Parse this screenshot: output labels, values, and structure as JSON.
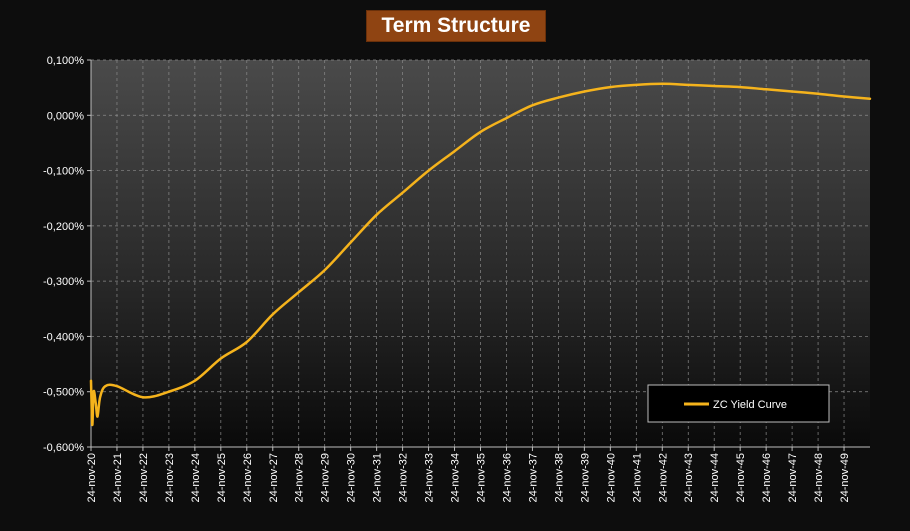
{
  "chart_data": {
    "type": "line",
    "title": "Term Structure",
    "xlabel": "",
    "ylabel": "",
    "ylim": [
      -0.6,
      0.1
    ],
    "yticks": [
      "0,100%",
      "0,000%",
      "-0,100%",
      "-0,200%",
      "-0,300%",
      "-0,400%",
      "-0,500%",
      "-0,600%"
    ],
    "ytick_values": [
      0.1,
      0.0,
      -0.1,
      -0.2,
      -0.3,
      -0.4,
      -0.5,
      -0.6
    ],
    "categories": [
      "24-nov-20",
      "24-nov-21",
      "24-nov-22",
      "24-nov-23",
      "24-nov-24",
      "24-nov-25",
      "24-nov-26",
      "24-nov-27",
      "24-nov-28",
      "24-nov-29",
      "24-nov-30",
      "24-nov-31",
      "24-nov-32",
      "24-nov-33",
      "24-nov-34",
      "24-nov-35",
      "24-nov-36",
      "24-nov-37",
      "24-nov-38",
      "24-nov-39",
      "24-nov-40",
      "24-nov-41",
      "24-nov-42",
      "24-nov-43",
      "24-nov-44",
      "24-nov-45",
      "24-nov-46",
      "24-nov-47",
      "24-nov-48",
      "24-nov-49"
    ],
    "xlim": [
      2020.9,
      2050.9
    ],
    "grid": true,
    "legend_position": "bottom-right",
    "series": [
      {
        "name": "ZC Yield Curve",
        "color": "#f5b31c",
        "points": [
          [
            2020.9,
            -0.48
          ],
          [
            2020.95,
            -0.56
          ],
          [
            2021.0,
            -0.5
          ],
          [
            2021.08,
            -0.52
          ],
          [
            2021.15,
            -0.545
          ],
          [
            2021.25,
            -0.51
          ],
          [
            2021.45,
            -0.49
          ],
          [
            2021.9,
            -0.49
          ],
          [
            2022.9,
            -0.51
          ],
          [
            2023.9,
            -0.5
          ],
          [
            2024.9,
            -0.48
          ],
          [
            2025.9,
            -0.44
          ],
          [
            2026.9,
            -0.41
          ],
          [
            2027.9,
            -0.36
          ],
          [
            2028.9,
            -0.32
          ],
          [
            2029.9,
            -0.28
          ],
          [
            2030.9,
            -0.23
          ],
          [
            2031.9,
            -0.18
          ],
          [
            2032.9,
            -0.14
          ],
          [
            2033.9,
            -0.1
          ],
          [
            2034.9,
            -0.065
          ],
          [
            2035.9,
            -0.03
          ],
          [
            2036.9,
            -0.005
          ],
          [
            2037.9,
            0.018
          ],
          [
            2038.9,
            0.032
          ],
          [
            2039.9,
            0.043
          ],
          [
            2040.9,
            0.051
          ],
          [
            2041.9,
            0.055
          ],
          [
            2042.9,
            0.057
          ],
          [
            2043.9,
            0.055
          ],
          [
            2044.9,
            0.053
          ],
          [
            2045.9,
            0.051
          ],
          [
            2046.9,
            0.047
          ],
          [
            2047.9,
            0.043
          ],
          [
            2048.9,
            0.039
          ],
          [
            2049.9,
            0.034
          ],
          [
            2050.9,
            0.03
          ]
        ]
      }
    ]
  }
}
